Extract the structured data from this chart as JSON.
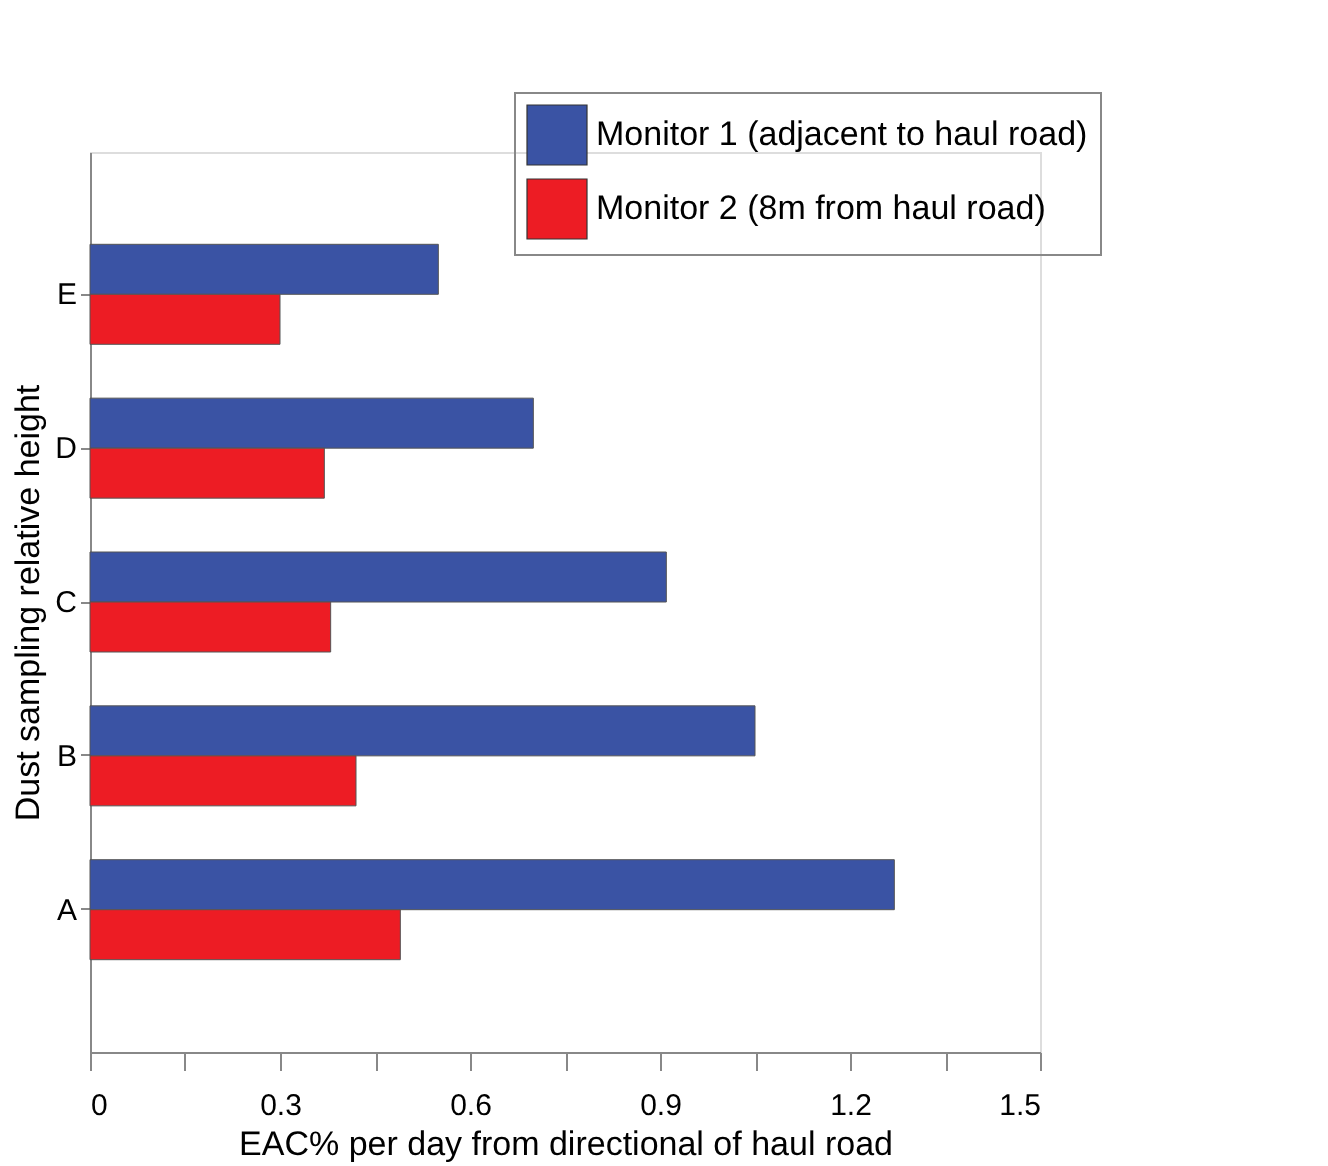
{
  "chart_data": {
    "type": "bar",
    "orientation": "horizontal",
    "xlabel": "EAC% per day from directional of haul road",
    "ylabel": "Dust sampling relative height",
    "categories": [
      "E",
      "D",
      "C",
      "B",
      "A"
    ],
    "series": [
      {
        "name": "Monitor 1 (adjacent to haul road)",
        "color": "#3a53a4",
        "values": [
          0.55,
          0.7,
          0.91,
          1.05,
          1.27
        ]
      },
      {
        "name": "Monitor 2 (8m from haul road)",
        "color": "#ed1c24",
        "values": [
          0.3,
          0.37,
          0.38,
          0.42,
          0.49
        ]
      }
    ],
    "xlim": [
      0,
      1.5
    ],
    "xticks": [
      0,
      {
        "value": 0.15,
        "label": null
      },
      0.3,
      {
        "value": 0.45,
        "label": null
      },
      0.6,
      {
        "value": 0.75,
        "label": null
      },
      0.9,
      {
        "value": 1.05,
        "label": null
      },
      1.2,
      {
        "value": 1.35,
        "label": null
      },
      1.5
    ],
    "grid": false,
    "legend": "top right"
  }
}
